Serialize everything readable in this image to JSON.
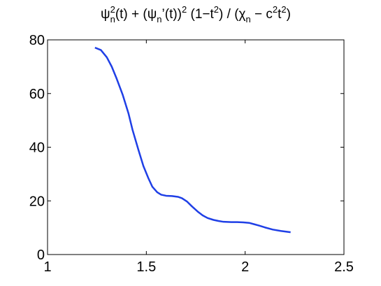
{
  "chart_data": {
    "type": "line",
    "title": [
      {
        "text": "ψ"
      },
      {
        "text": "n",
        "pos": "sub"
      },
      {
        "text": "2",
        "pos": "sup"
      },
      {
        "text": "(t) + (ψ"
      },
      {
        "text": "n",
        "pos": "sub"
      },
      {
        "text": "’(t))"
      },
      {
        "text": "2",
        "pos": "sup"
      },
      {
        "text": " (1−t"
      },
      {
        "text": "2",
        "pos": "sup"
      },
      {
        "text": ") / (χ"
      },
      {
        "text": "n",
        "pos": "sub"
      },
      {
        "text": " − c"
      },
      {
        "text": "2",
        "pos": "sup"
      },
      {
        "text": "t"
      },
      {
        "text": "2",
        "pos": "sup"
      },
      {
        "text": ")"
      }
    ],
    "x": [
      1.24,
      1.27,
      1.3,
      1.325,
      1.35,
      1.38,
      1.41,
      1.43,
      1.46,
      1.485,
      1.51,
      1.53,
      1.555,
      1.575,
      1.6,
      1.63,
      1.66,
      1.68,
      1.705,
      1.73,
      1.76,
      1.785,
      1.81,
      1.84,
      1.865,
      1.89,
      1.93,
      1.96,
      1.99,
      2.02,
      2.045,
      2.07,
      2.1,
      2.14,
      2.18,
      2.23
    ],
    "series": [
      {
        "color": "#1f3fe6",
        "values": [
          77.1,
          76.2,
          73.5,
          70,
          65.5,
          59.6,
          52.5,
          46.5,
          39,
          33,
          28.5,
          25.3,
          23.2,
          22.3,
          21.9,
          21.8,
          21.5,
          21,
          19.8,
          18,
          16,
          14.6,
          13.6,
          12.9,
          12.5,
          12.2,
          12.1,
          12.1,
          12,
          11.8,
          11.3,
          10.8,
          10.1,
          9.3,
          8.8,
          8.3
        ]
      }
    ],
    "xlim": [
      1,
      2.5
    ],
    "xticks": [
      1,
      1.5,
      2,
      2.5
    ],
    "ylim": [
      0,
      80
    ],
    "yticks": [
      0,
      20,
      40,
      60,
      80
    ]
  }
}
